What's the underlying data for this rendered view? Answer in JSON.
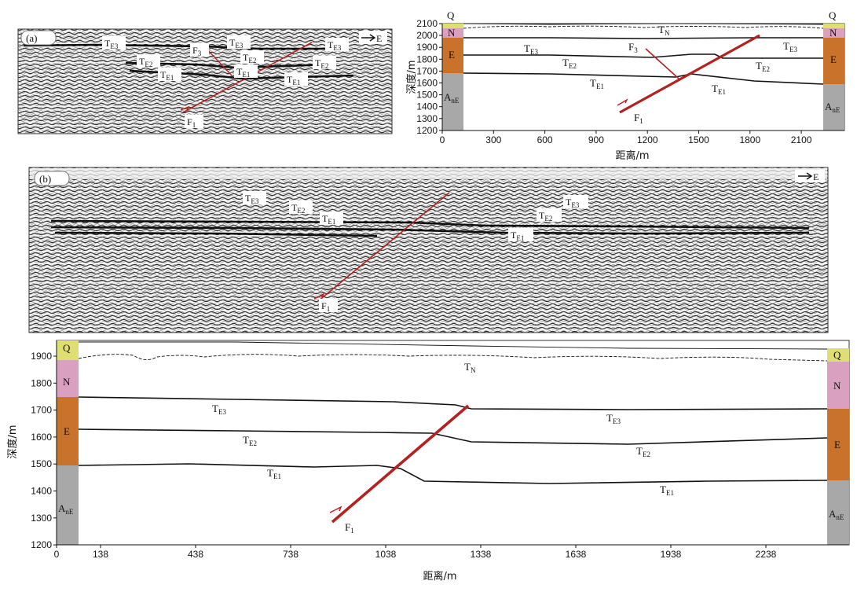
{
  "colors": {
    "Q": "#dede72",
    "N": "#d9a0bf",
    "E": "#c8722c",
    "AnE": "#a8a8a8",
    "fault": "#b52020"
  },
  "seismic_a": {
    "panel_tag": "(a)",
    "direction": "E",
    "labels": {
      "te3_left": {
        "main": "T",
        "sub": "E3"
      },
      "te2_left": {
        "main": "T",
        "sub": "E2"
      },
      "te1_left": {
        "main": "T",
        "sub": "E1"
      },
      "f3": {
        "main": "F",
        "sub": "3"
      },
      "te3_mid": {
        "main": "T",
        "sub": "E3"
      },
      "te2_mid": {
        "main": "T",
        "sub": "E2"
      },
      "te1_mid": {
        "main": "T",
        "sub": "E1"
      },
      "te3_right": {
        "main": "T",
        "sub": "E3"
      },
      "te2_right": {
        "main": "T",
        "sub": "E2"
      },
      "te1_right": {
        "main": "T",
        "sub": "E1"
      },
      "f1": {
        "main": "F",
        "sub": "1"
      }
    }
  },
  "interp_a": {
    "ylabel": "深度/m",
    "xlabel": "距离/m",
    "yticks": [
      "2100",
      "2000",
      "1900",
      "1800",
      "1700",
      "1600",
      "1500",
      "1400",
      "1300",
      "1200"
    ],
    "xticks": [
      "0",
      "300",
      "600",
      "900",
      "1200",
      "1500",
      "1800",
      "2100"
    ],
    "columns": {
      "q": "Q",
      "n": "N",
      "e": "E",
      "ane": {
        "main": "A",
        "sub": "nE"
      }
    },
    "labels": {
      "tn": {
        "main": "T",
        "sub": "N"
      },
      "te3_left": {
        "main": "T",
        "sub": "E3"
      },
      "te3_right": {
        "main": "T",
        "sub": "E3"
      },
      "f3": {
        "main": "F",
        "sub": "3"
      },
      "te2_left": {
        "main": "T",
        "sub": "E2"
      },
      "te2_right": {
        "main": "T",
        "sub": "E2"
      },
      "te1_left": {
        "main": "T",
        "sub": "E1"
      },
      "te1_right": {
        "main": "T",
        "sub": "E1"
      },
      "f1": {
        "main": "F",
        "sub": "1"
      }
    }
  },
  "seismic_b": {
    "panel_tag": "(b)",
    "direction": "E",
    "labels": {
      "te3_left": {
        "main": "T",
        "sub": "E3"
      },
      "te2_left": {
        "main": "T",
        "sub": "E2"
      },
      "te1_left": {
        "main": "T",
        "sub": "E1"
      },
      "te3_right": {
        "main": "T",
        "sub": "E3"
      },
      "te2_right": {
        "main": "T",
        "sub": "E2"
      },
      "te1_right": {
        "main": "T",
        "sub": "E1"
      },
      "f1": {
        "main": "F",
        "sub": "1"
      }
    }
  },
  "interp_b": {
    "ylabel": "深度/m",
    "xlabel": "距离/m",
    "yticks": [
      "1900",
      "1800",
      "1700",
      "1600",
      "1500",
      "1400",
      "1300",
      "1200"
    ],
    "xticks": [
      "0",
      "138",
      "438",
      "738",
      "1038",
      "1338",
      "1638",
      "1938",
      "2238"
    ],
    "columns": {
      "q": "Q",
      "n": "N",
      "e": "E",
      "ane": {
        "main": "A",
        "sub": "nE"
      }
    },
    "labels": {
      "tn": {
        "main": "T",
        "sub": "N"
      },
      "te3_left": {
        "main": "T",
        "sub": "E3"
      },
      "te3_right": {
        "main": "T",
        "sub": "E3"
      },
      "te2_left": {
        "main": "T",
        "sub": "E2"
      },
      "te2_right": {
        "main": "T",
        "sub": "E2"
      },
      "te1_left": {
        "main": "T",
        "sub": "E1"
      },
      "te1_right": {
        "main": "T",
        "sub": "E1"
      },
      "f1": {
        "main": "F",
        "sub": "1"
      }
    }
  }
}
